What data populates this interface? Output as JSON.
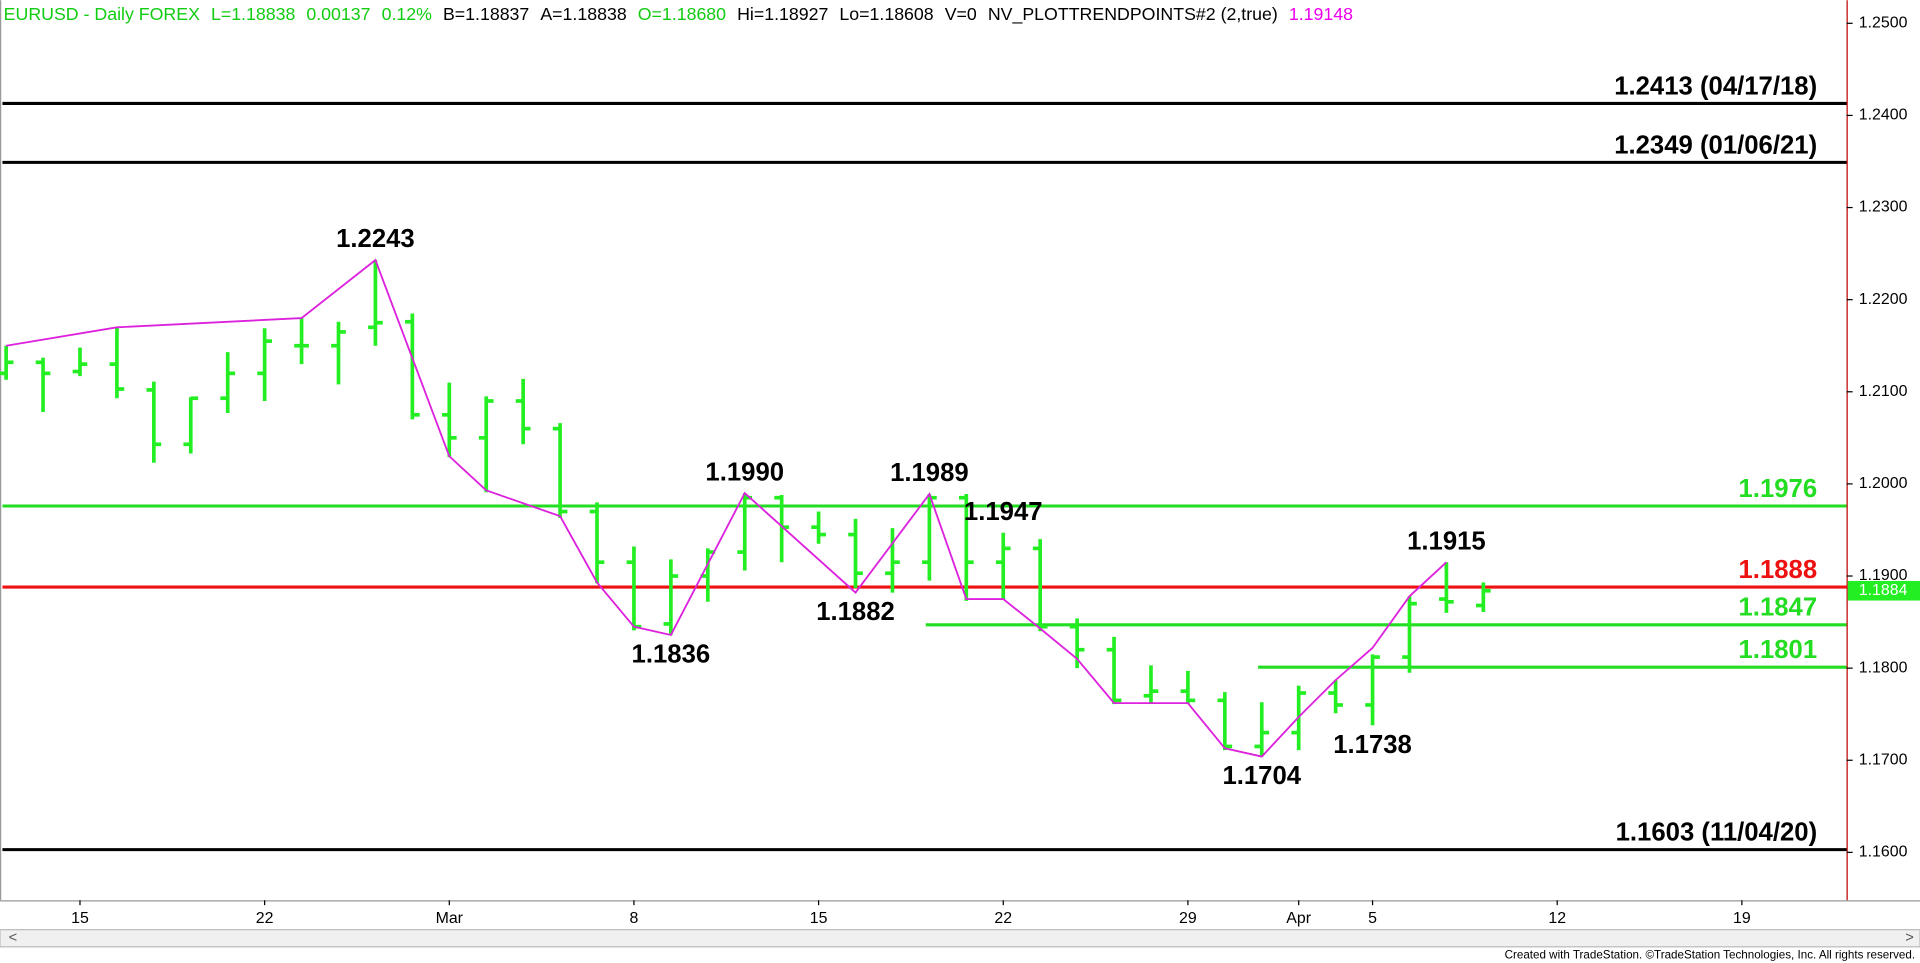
{
  "chart_data": {
    "type": "ohlc",
    "header": [
      {
        "text": "EURUSD - Daily  FOREX",
        "color": "#11cc11"
      },
      {
        "text": "L=1.18838",
        "color": "#11cc11"
      },
      {
        "text": "0.00137",
        "color": "#11cc11"
      },
      {
        "text": "0.12%",
        "color": "#11cc11"
      },
      {
        "text": "B=1.18837",
        "color": "#000000"
      },
      {
        "text": "A=1.18838",
        "color": "#000000"
      },
      {
        "text": "O=1.18680",
        "color": "#11cc11"
      },
      {
        "text": "Hi=1.18927",
        "color": "#000000"
      },
      {
        "text": "Lo=1.18608",
        "color": "#000000"
      },
      {
        "text": "V=0",
        "color": "#000000"
      },
      {
        "text": "NV_PLOTTRENDPOINTS#2 (2,true)",
        "color": "#000000"
      },
      {
        "text": "1.19148",
        "color": "#ee00ee"
      }
    ],
    "categories": [
      null,
      null,
      "15",
      null,
      null,
      null,
      null,
      "22",
      null,
      null,
      null,
      null,
      "Mar",
      null,
      null,
      null,
      null,
      "8",
      null,
      null,
      null,
      null,
      "15",
      null,
      null,
      null,
      null,
      "22",
      null,
      null,
      null,
      null,
      "29",
      null,
      null,
      "Apr",
      null,
      "5",
      null,
      null,
      null,
      null,
      "12",
      null,
      null,
      null,
      null,
      "19",
      null,
      null
    ],
    "color": "#22ee22",
    "open": [
      1.212,
      1.2132,
      1.2122,
      1.213,
      1.2102,
      1.2043,
      1.2093,
      1.212,
      1.215,
      1.215,
      1.217,
      1.2176,
      1.2075,
      1.205,
      1.209,
      1.206,
      1.197,
      1.1915,
      1.1848,
      1.19,
      1.1926,
      1.1985,
      1.1953,
      1.1945,
      1.1903,
      1.1915,
      1.1985,
      1.1915,
      1.193,
      1.1845,
      1.182,
      1.177,
      1.1775,
      1.1765,
      1.1715,
      1.173,
      1.1773,
      1.176,
      1.1812,
      1.1875,
      1.1868,
      null,
      null,
      null,
      null,
      null,
      null,
      null,
      null,
      null
    ],
    "high": [
      1.215,
      1.2137,
      1.2148,
      1.217,
      1.2111,
      1.2094,
      1.2143,
      1.2169,
      1.218,
      1.2176,
      1.2243,
      1.2185,
      1.211,
      1.2095,
      1.2114,
      1.2066,
      1.198,
      1.1932,
      1.1918,
      1.193,
      1.199,
      1.1988,
      1.197,
      1.1962,
      1.1952,
      1.1989,
      1.1989,
      1.1947,
      1.194,
      1.1854,
      1.1834,
      1.1803,
      1.1797,
      1.1774,
      1.1763,
      1.1781,
      1.1787,
      1.1815,
      1.1878,
      1.1915,
      1.1893,
      null,
      null,
      null,
      null,
      null,
      null,
      null,
      null,
      null
    ],
    "low": [
      1.2113,
      1.2078,
      1.2117,
      1.2093,
      1.2023,
      1.2033,
      1.2077,
      1.209,
      1.213,
      1.2108,
      1.215,
      1.207,
      1.2029,
      1.1991,
      1.2043,
      1.1963,
      1.1892,
      1.1841,
      1.1836,
      1.1872,
      1.1906,
      1.1915,
      1.1935,
      1.1887,
      1.1882,
      1.1895,
      1.1873,
      1.1874,
      1.184,
      1.18,
      1.1761,
      1.1761,
      1.1761,
      1.1711,
      1.1704,
      1.1711,
      1.1751,
      1.1738,
      1.1795,
      1.186,
      1.1861,
      null,
      null,
      null,
      null,
      null,
      null,
      null,
      null,
      null
    ],
    "close": [
      1.2132,
      1.212,
      1.213,
      1.2103,
      1.2043,
      1.2093,
      1.212,
      1.2155,
      1.215,
      1.2165,
      1.2175,
      1.2075,
      1.205,
      1.209,
      1.206,
      1.197,
      1.1915,
      1.1845,
      1.19,
      1.1926,
      1.1985,
      1.1953,
      1.1945,
      1.1903,
      1.1915,
      1.1985,
      1.1915,
      1.193,
      1.1845,
      1.182,
      1.1765,
      1.1775,
      1.1765,
      1.1715,
      1.173,
      1.1773,
      1.176,
      1.1812,
      1.187,
      1.1872,
      1.1884,
      null,
      null,
      null,
      null,
      null,
      null,
      null,
      null,
      null
    ],
    "trend": {
      "color": "#dd22dd",
      "x": [
        0,
        3,
        8,
        10,
        12,
        13,
        15,
        16,
        17,
        18,
        20,
        23,
        25,
        26,
        27,
        28,
        29,
        30,
        32,
        33,
        34,
        35,
        36,
        37,
        38,
        39
      ],
      "values": [
        1.215,
        1.217,
        1.218,
        1.2243,
        1.203,
        1.1993,
        1.1965,
        1.1893,
        1.1845,
        1.1836,
        1.199,
        1.1882,
        1.1989,
        1.1875,
        1.1875,
        1.1843,
        1.181,
        1.1762,
        1.1762,
        1.1713,
        1.1704,
        1.1747,
        1.1787,
        1.1822,
        1.1878,
        1.1915
      ]
    },
    "annotations": [
      {
        "text": "1.2243",
        "x": 10,
        "y": 1.2243,
        "position": "above"
      },
      {
        "text": "1.1990",
        "x": 20,
        "y": 1.199,
        "position": "above"
      },
      {
        "text": "1.1989",
        "x": 25,
        "y": 1.1989,
        "position": "above"
      },
      {
        "text": "1.1947",
        "x": 27,
        "y": 1.1947,
        "position": "above"
      },
      {
        "text": "1.1915",
        "x": 39,
        "y": 1.1915,
        "position": "above"
      },
      {
        "text": "1.1836",
        "x": 18,
        "y": 1.1836,
        "position": "below"
      },
      {
        "text": "1.1882",
        "x": 23,
        "y": 1.1882,
        "position": "below"
      },
      {
        "text": "1.1704",
        "x": 34,
        "y": 1.1704,
        "position": "below"
      },
      {
        "text": "1.1738",
        "x": 37,
        "y": 1.1738,
        "position": "below"
      }
    ],
    "levels": [
      {
        "value": 1.2413,
        "label": "1.2413 (04/17/18)",
        "color": "#000000",
        "from": 0
      },
      {
        "value": 1.2349,
        "label": "1.2349 (01/06/21)",
        "color": "#000000",
        "from": 0
      },
      {
        "value": 1.1976,
        "label": "1.1976",
        "color": "#22dd22",
        "from": 0
      },
      {
        "value": 1.1888,
        "label": "1.1888",
        "color": "#ee1111",
        "from": 0
      },
      {
        "value": 1.1847,
        "label": "1.1847",
        "color": "#22dd22",
        "from": 25
      },
      {
        "value": 1.1801,
        "label": "1.1801",
        "color": "#22dd22",
        "from": 34
      },
      {
        "value": 1.1603,
        "label": "1.1603 (11/04/20)",
        "color": "#000000",
        "from": 0
      }
    ],
    "last_price": {
      "value": 1.1884,
      "label": "1.1884"
    },
    "ylim": [
      1.1548,
      1.2525
    ],
    "yticks": [
      {
        "value": 1.16,
        "label": "1.1600"
      },
      {
        "value": 1.17,
        "label": "1.1700"
      },
      {
        "value": 1.18,
        "label": "1.1800"
      },
      {
        "value": 1.19,
        "label": "1.1900"
      },
      {
        "value": 1.2,
        "label": "1.2000"
      },
      {
        "value": 1.21,
        "label": "1.2100"
      },
      {
        "value": 1.22,
        "label": "1.2200"
      },
      {
        "value": 1.23,
        "label": "1.2300"
      },
      {
        "value": 1.24,
        "label": "1.2400"
      },
      {
        "value": 1.25,
        "label": "1.2500"
      }
    ],
    "footer": "Created with TradeStation. ©TradeStation Technologies, Inc. All rights reserved."
  }
}
